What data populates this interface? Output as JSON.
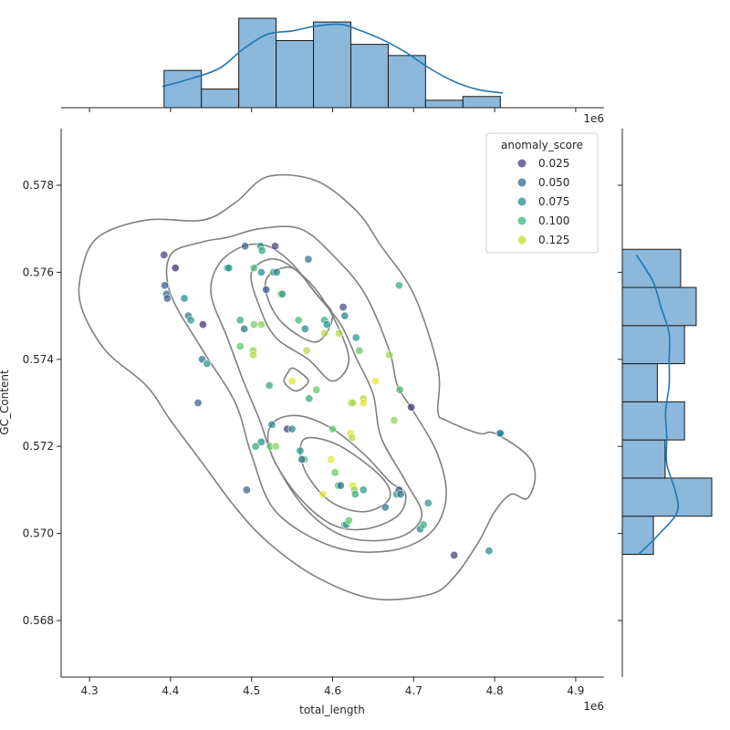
{
  "chart_data": {
    "type": "scatter",
    "xlabel": "total_length",
    "ylabel": "GC_Content",
    "x_offset_label": "1e6",
    "top_offset_label": "1e6",
    "xlim": [
      4.265,
      4.935
    ],
    "ylim": [
      0.5667,
      0.5793
    ],
    "x_ticks": [
      "4.3",
      "4.4",
      "4.5",
      "4.6",
      "4.7",
      "4.8",
      "4.9"
    ],
    "y_ticks": [
      "0.568",
      "0.570",
      "0.572",
      "0.574",
      "0.576",
      "0.578"
    ],
    "legend": {
      "title": "anomaly_score",
      "placement": "upper right",
      "entries": [
        {
          "label": "0.025",
          "color": "#443983"
        },
        {
          "label": "0.050",
          "color": "#31688e"
        },
        {
          "label": "0.075",
          "color": "#21918c"
        },
        {
          "label": "0.100",
          "color": "#35b779"
        },
        {
          "label": "0.125",
          "color": "#bddf26"
        }
      ]
    },
    "points": [
      {
        "x": 4.392,
        "y": 0.5764,
        "s": 0.035
      },
      {
        "x": 4.406,
        "y": 0.5761,
        "s": 0.025
      },
      {
        "x": 4.393,
        "y": 0.5757,
        "s": 0.045
      },
      {
        "x": 4.395,
        "y": 0.5755,
        "s": 0.055
      },
      {
        "x": 4.396,
        "y": 0.5754,
        "s": 0.05
      },
      {
        "x": 4.417,
        "y": 0.5754,
        "s": 0.075
      },
      {
        "x": 4.422,
        "y": 0.575,
        "s": 0.06
      },
      {
        "x": 4.425,
        "y": 0.5749,
        "s": 0.08
      },
      {
        "x": 4.44,
        "y": 0.5748,
        "s": 0.03
      },
      {
        "x": 4.47,
        "y": 0.5761,
        "s": 0.07
      },
      {
        "x": 4.472,
        "y": 0.5761,
        "s": 0.08
      },
      {
        "x": 4.492,
        "y": 0.5766,
        "s": 0.05
      },
      {
        "x": 4.511,
        "y": 0.5766,
        "s": 0.08
      },
      {
        "x": 4.513,
        "y": 0.5765,
        "s": 0.09
      },
      {
        "x": 4.529,
        "y": 0.5766,
        "s": 0.035
      },
      {
        "x": 4.503,
        "y": 0.5761,
        "s": 0.1
      },
      {
        "x": 4.512,
        "y": 0.576,
        "s": 0.07
      },
      {
        "x": 4.527,
        "y": 0.576,
        "s": 0.09
      },
      {
        "x": 4.531,
        "y": 0.576,
        "s": 0.07
      },
      {
        "x": 4.518,
        "y": 0.5756,
        "s": 0.045
      },
      {
        "x": 4.536,
        "y": 0.5755,
        "s": 0.12
      },
      {
        "x": 4.538,
        "y": 0.5755,
        "s": 0.08
      },
      {
        "x": 4.57,
        "y": 0.5763,
        "s": 0.06
      },
      {
        "x": 4.486,
        "y": 0.5749,
        "s": 0.09
      },
      {
        "x": 4.491,
        "y": 0.5747,
        "s": 0.06
      },
      {
        "x": 4.503,
        "y": 0.5748,
        "s": 0.115
      },
      {
        "x": 4.512,
        "y": 0.5748,
        "s": 0.12
      },
      {
        "x": 4.486,
        "y": 0.5743,
        "s": 0.11
      },
      {
        "x": 4.502,
        "y": 0.5742,
        "s": 0.12
      },
      {
        "x": 4.502,
        "y": 0.5741,
        "s": 0.13
      },
      {
        "x": 4.439,
        "y": 0.574,
        "s": 0.06
      },
      {
        "x": 4.445,
        "y": 0.5739,
        "s": 0.08
      },
      {
        "x": 4.434,
        "y": 0.573,
        "s": 0.05
      },
      {
        "x": 4.522,
        "y": 0.5734,
        "s": 0.09
      },
      {
        "x": 4.55,
        "y": 0.5735,
        "s": 0.14
      },
      {
        "x": 4.558,
        "y": 0.5749,
        "s": 0.1
      },
      {
        "x": 4.566,
        "y": 0.5747,
        "s": 0.075
      },
      {
        "x": 4.568,
        "y": 0.5742,
        "s": 0.13
      },
      {
        "x": 4.571,
        "y": 0.5731,
        "s": 0.09
      },
      {
        "x": 4.58,
        "y": 0.5733,
        "s": 0.11
      },
      {
        "x": 4.59,
        "y": 0.5749,
        "s": 0.09
      },
      {
        "x": 4.593,
        "y": 0.5748,
        "s": 0.075
      },
      {
        "x": 4.59,
        "y": 0.5746,
        "s": 0.13
      },
      {
        "x": 4.608,
        "y": 0.5746,
        "s": 0.13
      },
      {
        "x": 4.613,
        "y": 0.5752,
        "s": 0.04
      },
      {
        "x": 4.615,
        "y": 0.575,
        "s": 0.07
      },
      {
        "x": 4.629,
        "y": 0.5745,
        "s": 0.08
      },
      {
        "x": 4.633,
        "y": 0.5742,
        "s": 0.11
      },
      {
        "x": 4.682,
        "y": 0.5757,
        "s": 0.09
      },
      {
        "x": 4.67,
        "y": 0.5741,
        "s": 0.125
      },
      {
        "x": 4.653,
        "y": 0.5735,
        "s": 0.14
      },
      {
        "x": 4.623,
        "y": 0.573,
        "s": 0.12
      },
      {
        "x": 4.625,
        "y": 0.573,
        "s": 0.13
      },
      {
        "x": 4.638,
        "y": 0.5731,
        "s": 0.13
      },
      {
        "x": 4.638,
        "y": 0.573,
        "s": 0.14
      },
      {
        "x": 4.683,
        "y": 0.5733,
        "s": 0.1
      },
      {
        "x": 4.676,
        "y": 0.5726,
        "s": 0.12
      },
      {
        "x": 4.697,
        "y": 0.5729,
        "s": 0.03
      },
      {
        "x": 4.544,
        "y": 0.5724,
        "s": 0.035
      },
      {
        "x": 4.55,
        "y": 0.5724,
        "s": 0.07
      },
      {
        "x": 4.525,
        "y": 0.5725,
        "s": 0.07
      },
      {
        "x": 4.512,
        "y": 0.5721,
        "s": 0.075
      },
      {
        "x": 4.523,
        "y": 0.572,
        "s": 0.11
      },
      {
        "x": 4.53,
        "y": 0.572,
        "s": 0.12
      },
      {
        "x": 4.505,
        "y": 0.572,
        "s": 0.09
      },
      {
        "x": 4.56,
        "y": 0.5719,
        "s": 0.08
      },
      {
        "x": 4.565,
        "y": 0.5717,
        "s": 0.1
      },
      {
        "x": 4.562,
        "y": 0.5717,
        "s": 0.06
      },
      {
        "x": 4.6,
        "y": 0.5724,
        "s": 0.11
      },
      {
        "x": 4.622,
        "y": 0.5723,
        "s": 0.14
      },
      {
        "x": 4.624,
        "y": 0.5722,
        "s": 0.13
      },
      {
        "x": 4.598,
        "y": 0.5717,
        "s": 0.14
      },
      {
        "x": 4.603,
        "y": 0.5714,
        "s": 0.11
      },
      {
        "x": 4.607,
        "y": 0.5711,
        "s": 0.1
      },
      {
        "x": 4.61,
        "y": 0.5711,
        "s": 0.06
      },
      {
        "x": 4.625,
        "y": 0.5711,
        "s": 0.14
      },
      {
        "x": 4.627,
        "y": 0.571,
        "s": 0.12
      },
      {
        "x": 4.628,
        "y": 0.5709,
        "s": 0.09
      },
      {
        "x": 4.638,
        "y": 0.571,
        "s": 0.08
      },
      {
        "x": 4.588,
        "y": 0.5709,
        "s": 0.14
      },
      {
        "x": 4.494,
        "y": 0.571,
        "s": 0.05
      },
      {
        "x": 4.615,
        "y": 0.5702,
        "s": 0.07
      },
      {
        "x": 4.617,
        "y": 0.5702,
        "s": 0.09
      },
      {
        "x": 4.62,
        "y": 0.5703,
        "s": 0.11
      },
      {
        "x": 4.665,
        "y": 0.5706,
        "s": 0.06
      },
      {
        "x": 4.679,
        "y": 0.5709,
        "s": 0.08
      },
      {
        "x": 4.682,
        "y": 0.571,
        "s": 0.05
      },
      {
        "x": 4.684,
        "y": 0.5709,
        "s": 0.06
      },
      {
        "x": 4.708,
        "y": 0.5701,
        "s": 0.07
      },
      {
        "x": 4.712,
        "y": 0.5702,
        "s": 0.09
      },
      {
        "x": 4.718,
        "y": 0.5707,
        "s": 0.08
      },
      {
        "x": 4.75,
        "y": 0.5695,
        "s": 0.035
      },
      {
        "x": 4.793,
        "y": 0.5696,
        "s": 0.075
      },
      {
        "x": 4.806,
        "y": 0.5723,
        "s": 0.06
      },
      {
        "x": 4.807,
        "y": 0.5723,
        "s": 0.07
      }
    ],
    "kde_contours": [
      [
        [
          4.29,
          0.576
        ],
        [
          4.31,
          0.5768
        ],
        [
          4.37,
          0.5772
        ],
        [
          4.44,
          0.5772
        ],
        [
          4.48,
          0.5776
        ],
        [
          4.52,
          0.5782
        ],
        [
          4.58,
          0.5781
        ],
        [
          4.63,
          0.5774
        ],
        [
          4.66,
          0.5766
        ],
        [
          4.7,
          0.5755
        ],
        [
          4.73,
          0.5738
        ],
        [
          4.73,
          0.5728
        ],
        [
          4.74,
          0.5726
        ],
        [
          4.78,
          0.5723
        ],
        [
          4.8,
          0.5723
        ],
        [
          4.84,
          0.5718
        ],
        [
          4.85,
          0.5713
        ],
        [
          4.84,
          0.5708
        ],
        [
          4.82,
          0.5709
        ],
        [
          4.8,
          0.5705
        ],
        [
          4.78,
          0.5698
        ],
        [
          4.75,
          0.569
        ],
        [
          4.72,
          0.5686
        ],
        [
          4.65,
          0.5685
        ],
        [
          4.58,
          0.569
        ],
        [
          4.52,
          0.5698
        ],
        [
          4.48,
          0.5706
        ],
        [
          4.44,
          0.5716
        ],
        [
          4.4,
          0.5726
        ],
        [
          4.37,
          0.5734
        ],
        [
          4.32,
          0.5742
        ],
        [
          4.29,
          0.5752
        ]
      ],
      [
        [
          4.4,
          0.5764
        ],
        [
          4.44,
          0.5767
        ],
        [
          4.47,
          0.5768
        ],
        [
          4.51,
          0.577
        ],
        [
          4.56,
          0.577
        ],
        [
          4.6,
          0.5764
        ],
        [
          4.64,
          0.5755
        ],
        [
          4.67,
          0.5742
        ],
        [
          4.68,
          0.5734
        ],
        [
          4.7,
          0.5728
        ],
        [
          4.73,
          0.5718
        ],
        [
          4.74,
          0.5708
        ],
        [
          4.72,
          0.57
        ],
        [
          4.67,
          0.5696
        ],
        [
          4.6,
          0.5697
        ],
        [
          4.53,
          0.5705
        ],
        [
          4.5,
          0.5718
        ],
        [
          4.48,
          0.573
        ],
        [
          4.44,
          0.5742
        ],
        [
          4.4,
          0.5755
        ]
      ],
      [
        [
          4.46,
          0.5762
        ],
        [
          4.49,
          0.5766
        ],
        [
          4.52,
          0.5766
        ],
        [
          4.55,
          0.5762
        ],
        [
          4.58,
          0.5755
        ],
        [
          4.61,
          0.5748
        ],
        [
          4.63,
          0.574
        ],
        [
          4.65,
          0.5732
        ],
        [
          4.66,
          0.5722
        ],
        [
          4.69,
          0.5712
        ],
        [
          4.71,
          0.5704
        ],
        [
          4.68,
          0.5699
        ],
        [
          4.62,
          0.5699
        ],
        [
          4.57,
          0.5705
        ],
        [
          4.53,
          0.5716
        ],
        [
          4.51,
          0.5726
        ],
        [
          4.49,
          0.5735
        ],
        [
          4.47,
          0.5745
        ],
        [
          4.45,
          0.5755
        ]
      ],
      [
        [
          4.5,
          0.576
        ],
        [
          4.53,
          0.5763
        ],
        [
          4.57,
          0.5758
        ],
        [
          4.6,
          0.575
        ],
        [
          4.62,
          0.574
        ],
        [
          4.6,
          0.5735
        ],
        [
          4.57,
          0.574
        ],
        [
          4.53,
          0.5745
        ],
        [
          4.51,
          0.5752
        ]
      ],
      [
        [
          4.52,
          0.5759
        ],
        [
          4.55,
          0.5761
        ],
        [
          4.58,
          0.5755
        ],
        [
          4.6,
          0.575
        ],
        [
          4.58,
          0.5744
        ],
        [
          4.54,
          0.5748
        ],
        [
          4.52,
          0.5754
        ]
      ],
      [
        [
          4.55,
          0.5738
        ],
        [
          4.56,
          0.5737
        ],
        [
          4.57,
          0.5735
        ],
        [
          4.56,
          0.5733
        ],
        [
          4.55,
          0.5733
        ],
        [
          4.54,
          0.5735
        ],
        [
          4.545,
          0.5737
        ]
      ],
      [
        [
          4.53,
          0.5726
        ],
        [
          4.56,
          0.5727
        ],
        [
          4.6,
          0.5724
        ],
        [
          4.64,
          0.5718
        ],
        [
          4.67,
          0.5712
        ],
        [
          4.69,
          0.5709
        ],
        [
          4.68,
          0.5704
        ],
        [
          4.64,
          0.5701
        ],
        [
          4.6,
          0.5702
        ],
        [
          4.56,
          0.5708
        ],
        [
          4.53,
          0.5716
        ],
        [
          4.52,
          0.5722
        ]
      ],
      [
        [
          4.57,
          0.5722
        ],
        [
          4.61,
          0.572
        ],
        [
          4.66,
          0.5713
        ],
        [
          4.67,
          0.5708
        ],
        [
          4.64,
          0.5705
        ],
        [
          4.6,
          0.5707
        ],
        [
          4.57,
          0.5713
        ],
        [
          4.56,
          0.5719
        ]
      ]
    ],
    "top_histogram": {
      "bin_edges": [
        4.392,
        4.4381,
        4.4842,
        4.5303,
        4.5764,
        4.6225,
        4.6686,
        4.7147,
        4.7608,
        4.807
      ],
      "counts": [
        10,
        5,
        24,
        18,
        23,
        17,
        14,
        2,
        3
      ],
      "kde": [
        [
          4.39,
          0.13
        ],
        [
          4.42,
          0.17
        ],
        [
          4.46,
          0.24
        ],
        [
          4.49,
          0.36
        ],
        [
          4.52,
          0.45
        ],
        [
          4.55,
          0.47
        ],
        [
          4.58,
          0.5
        ],
        [
          4.61,
          0.51
        ],
        [
          4.63,
          0.48
        ],
        [
          4.66,
          0.42
        ],
        [
          4.69,
          0.34
        ],
        [
          4.72,
          0.24
        ],
        [
          4.75,
          0.16
        ],
        [
          4.78,
          0.11
        ],
        [
          4.81,
          0.09
        ]
      ]
    },
    "right_histogram": {
      "bin_edges": [
        0.56952,
        0.570396,
        0.571272,
        0.572148,
        0.573024,
        0.5739,
        0.574776,
        0.575652,
        0.576528
      ],
      "counts": [
        8,
        23,
        11,
        16,
        9,
        16,
        19,
        15
      ],
      "kde": [
        [
          0.56952,
          0.14
        ],
        [
          0.57,
          0.32
        ],
        [
          0.5705,
          0.47
        ],
        [
          0.571,
          0.45
        ],
        [
          0.5716,
          0.38
        ],
        [
          0.5722,
          0.38
        ],
        [
          0.5728,
          0.37
        ],
        [
          0.5734,
          0.4
        ],
        [
          0.574,
          0.4
        ],
        [
          0.5746,
          0.4
        ],
        [
          0.5752,
          0.33
        ],
        [
          0.5758,
          0.26
        ],
        [
          0.5764,
          0.12
        ]
      ]
    }
  }
}
